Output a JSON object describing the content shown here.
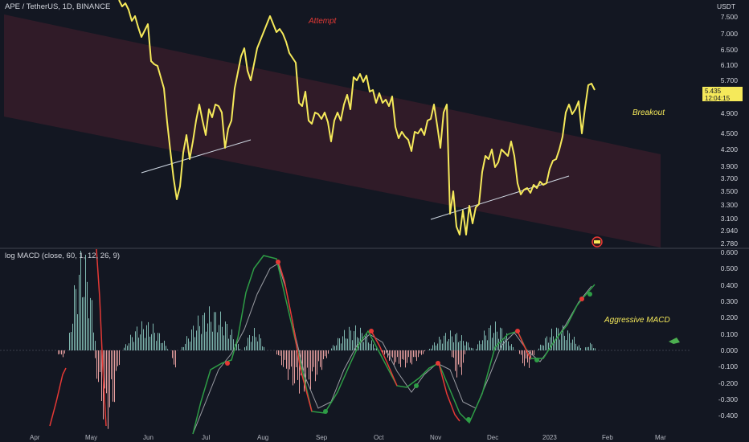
{
  "header": {
    "symbol_title": "APE / TetherUS, 1D, BINANCE",
    "indicator_title": "log MACD (close, 60, 1, 12, 26, 9)"
  },
  "price_axis": {
    "unit": "USDT",
    "labels": [
      "7.500",
      "7.000",
      "6.500",
      "6.100",
      "5.700",
      "4.900",
      "4.500",
      "4.200",
      "3.900",
      "3.700",
      "3.500",
      "3.300",
      "3.100",
      "2.940",
      "2.780"
    ]
  },
  "price_tag": {
    "price": "5.435",
    "countdown": "12:04:15"
  },
  "macd_axis": {
    "labels": [
      "0.600",
      "0.500",
      "0.400",
      "0.300",
      "0.200",
      "0.100",
      "0.000",
      "-0.100",
      "-0.200",
      "-0.300",
      "-0.400"
    ]
  },
  "time_axis": {
    "labels": [
      "Apr",
      "May",
      "Jun",
      "Jul",
      "Aug",
      "Sep",
      "Oct",
      "Nov",
      "Dec",
      "2023",
      "Feb",
      "Mar"
    ]
  },
  "annotations": {
    "attempt": "Attempt",
    "breakout": "Breakout",
    "aggressive_macd": "Aggressive MACD"
  },
  "colors": {
    "background": "#131722",
    "price_line": "#f5e95a",
    "channel_fill": "#3b1d2b",
    "macd_line_up": "#2e9d46",
    "macd_line_down": "#e53935",
    "signal_line": "#9a9ca3",
    "hist_positive": "#7fb8b0",
    "hist_negative": "#e8a0a0"
  },
  "icons": [
    "flag-icon"
  ]
}
